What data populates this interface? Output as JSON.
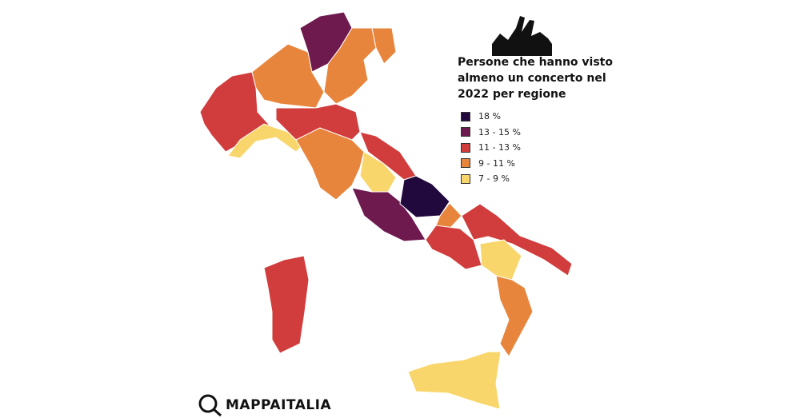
{
  "title": "Persone che hanno visto almeno un concerto nel 2022 per regione",
  "legend": [
    {
      "label": "18 %",
      "color": "#22093d"
    },
    {
      "label": "13 - 15 %",
      "color": "#6e1a4f"
    },
    {
      "label": "11 - 13 %",
      "color": "#d13c3c"
    },
    {
      "label": "9 - 11 %",
      "color": "#e8853d"
    },
    {
      "label": "7 - 9 %",
      "color": "#f8d66b"
    }
  ],
  "logo": "MAPPAITALIA"
}
